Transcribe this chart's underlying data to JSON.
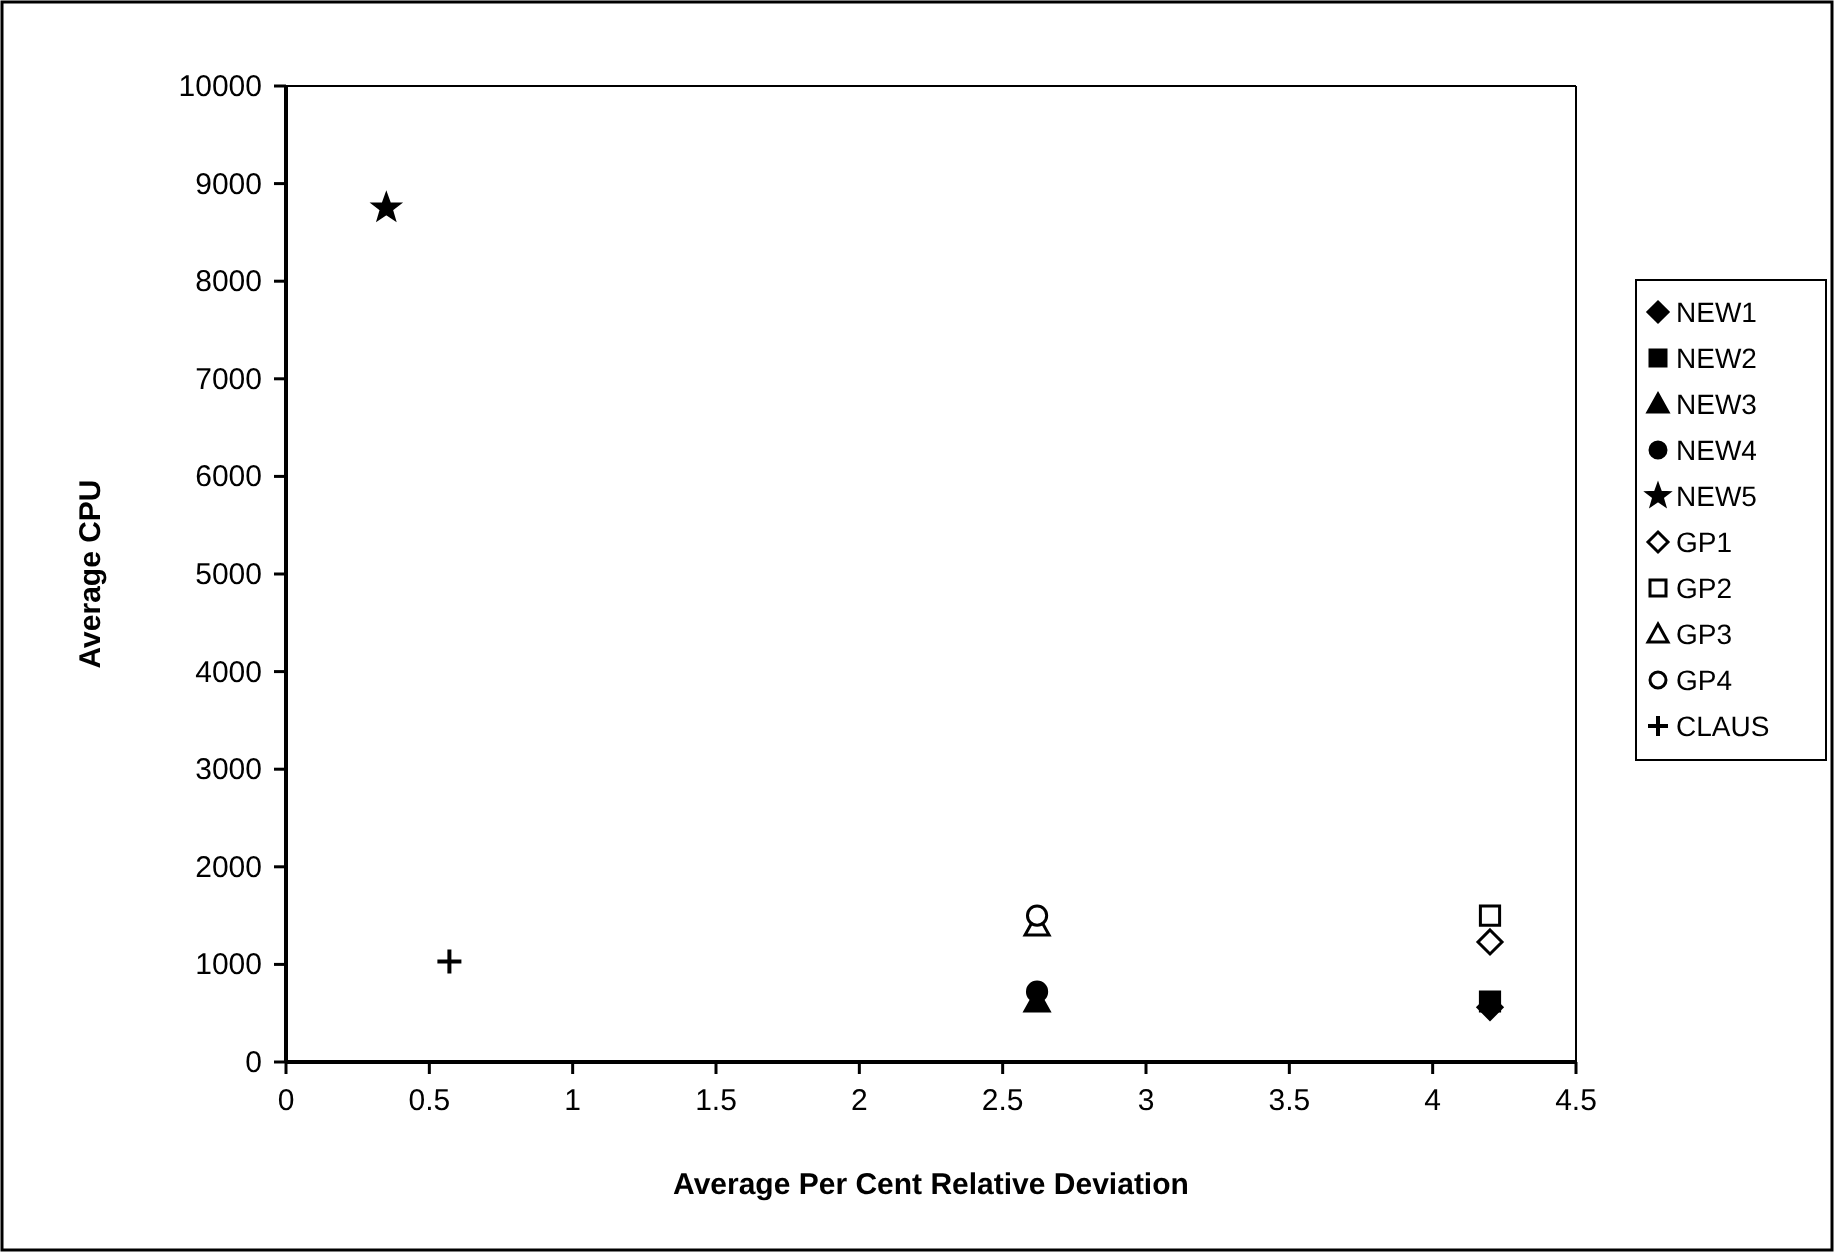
{
  "chart_data": {
    "type": "scatter",
    "xlabel": "Average Per Cent Relative Deviation",
    "ylabel": "Average CPU",
    "xlim": [
      0,
      4.5
    ],
    "xticks": [
      0,
      0.5,
      1,
      1.5,
      2,
      2.5,
      3,
      3.5,
      4,
      4.5
    ],
    "ylim": [
      0,
      10000
    ],
    "yticks": [
      0,
      1000,
      2000,
      3000,
      4000,
      5000,
      6000,
      7000,
      8000,
      9000,
      10000
    ],
    "grid": false,
    "legend": "right",
    "series": [
      {
        "name": "NEW1",
        "color": "#000000",
        "marker": "diamond",
        "x": [
          4.2
        ],
        "values": [
          560
        ]
      },
      {
        "name": "NEW2",
        "color": "#000000",
        "marker": "square",
        "x": [
          4.2
        ],
        "values": [
          620
        ]
      },
      {
        "name": "NEW3",
        "color": "#000000",
        "marker": "triangle",
        "x": [
          2.62
        ],
        "values": [
          620
        ]
      },
      {
        "name": "NEW4",
        "color": "#000000",
        "marker": "circle",
        "x": [
          2.62
        ],
        "values": [
          720
        ]
      },
      {
        "name": "NEW5",
        "color": "#000000",
        "marker": "star",
        "x": [
          0.35
        ],
        "values": [
          8750
        ]
      },
      {
        "name": "GP1",
        "color": "#000000",
        "marker": "diamond",
        "x": [
          4.2
        ],
        "values": [
          1230
        ]
      },
      {
        "name": "GP2",
        "color": "#000000",
        "marker": "square",
        "x": [
          4.2
        ],
        "values": [
          1500
        ]
      },
      {
        "name": "GP3",
        "color": "#000000",
        "marker": "triangle",
        "x": [
          2.62
        ],
        "values": [
          1400
        ]
      },
      {
        "name": "GP4",
        "color": "#000000",
        "marker": "circle",
        "x": [
          2.62
        ],
        "values": [
          1500
        ]
      },
      {
        "name": "CLAUS",
        "color": "#000000",
        "marker": "cross",
        "x": [
          0.57
        ],
        "values": [
          1030
        ]
      }
    ]
  }
}
